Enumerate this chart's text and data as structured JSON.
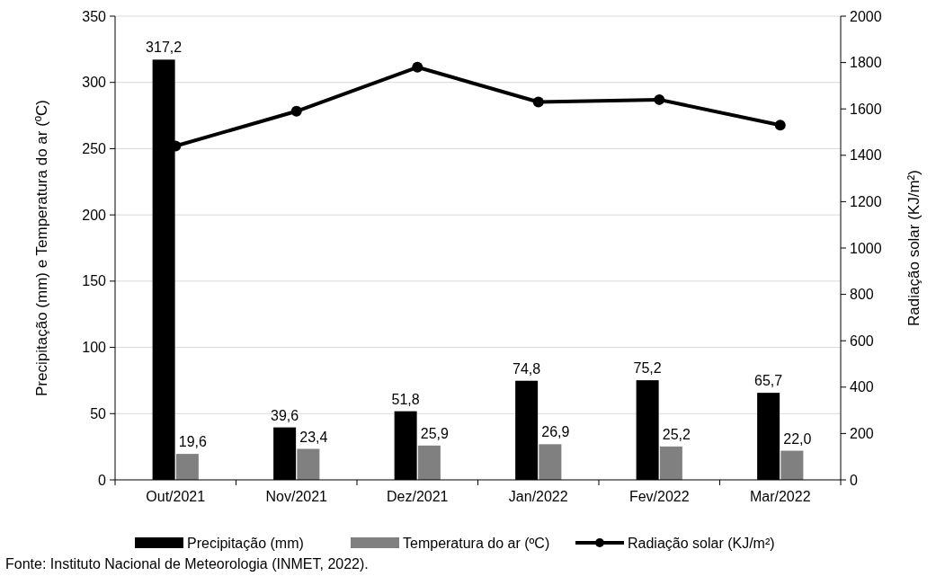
{
  "chart_data": {
    "type": "bar",
    "categories": [
      "Out/2021",
      "Nov/2021",
      "Dez/2021",
      "Jan/2022",
      "Fev/2022",
      "Mar/2022"
    ],
    "ylabel": "Precipitação (mm) e Temperatura  do ar (ºC)",
    "y2label": "Radiação solar (KJ/m²)",
    "series": [
      {
        "name": "Precipitação (mm)",
        "color": "#000000",
        "values": [
          317.2,
          39.6,
          51.8,
          74.8,
          75.2,
          65.7
        ],
        "value_labels": [
          "317,2",
          "39,6",
          "51,8",
          "74,8",
          "75,2",
          "65,7"
        ]
      },
      {
        "name": "Temperatura do ar (ºC)",
        "color": "#808080",
        "values": [
          19.6,
          23.4,
          25.9,
          26.9,
          25.2,
          22.0
        ],
        "value_labels": [
          "19,6",
          "23,4",
          "25,9",
          "26,9",
          "25,2",
          "22,0"
        ]
      },
      {
        "name": "Radiação solar (KJ/m²)",
        "type": "line",
        "axis": "y2",
        "color": "#000000",
        "marker": "circle",
        "values": [
          1440,
          1590,
          1780,
          1630,
          1640,
          1530
        ]
      }
    ],
    "ylim": [
      0,
      350
    ],
    "yticks": [
      0,
      50,
      100,
      150,
      200,
      250,
      300,
      350
    ],
    "y2lim": [
      0,
      2000
    ],
    "y2ticks": [
      0,
      200,
      400,
      600,
      800,
      1000,
      1200,
      1400,
      1600,
      1800,
      2000
    ],
    "grid": "y",
    "legend": "bottom",
    "annotations": [
      "Fonte: Instituto Nacional de Meteorologia (INMET, 2022)."
    ]
  }
}
